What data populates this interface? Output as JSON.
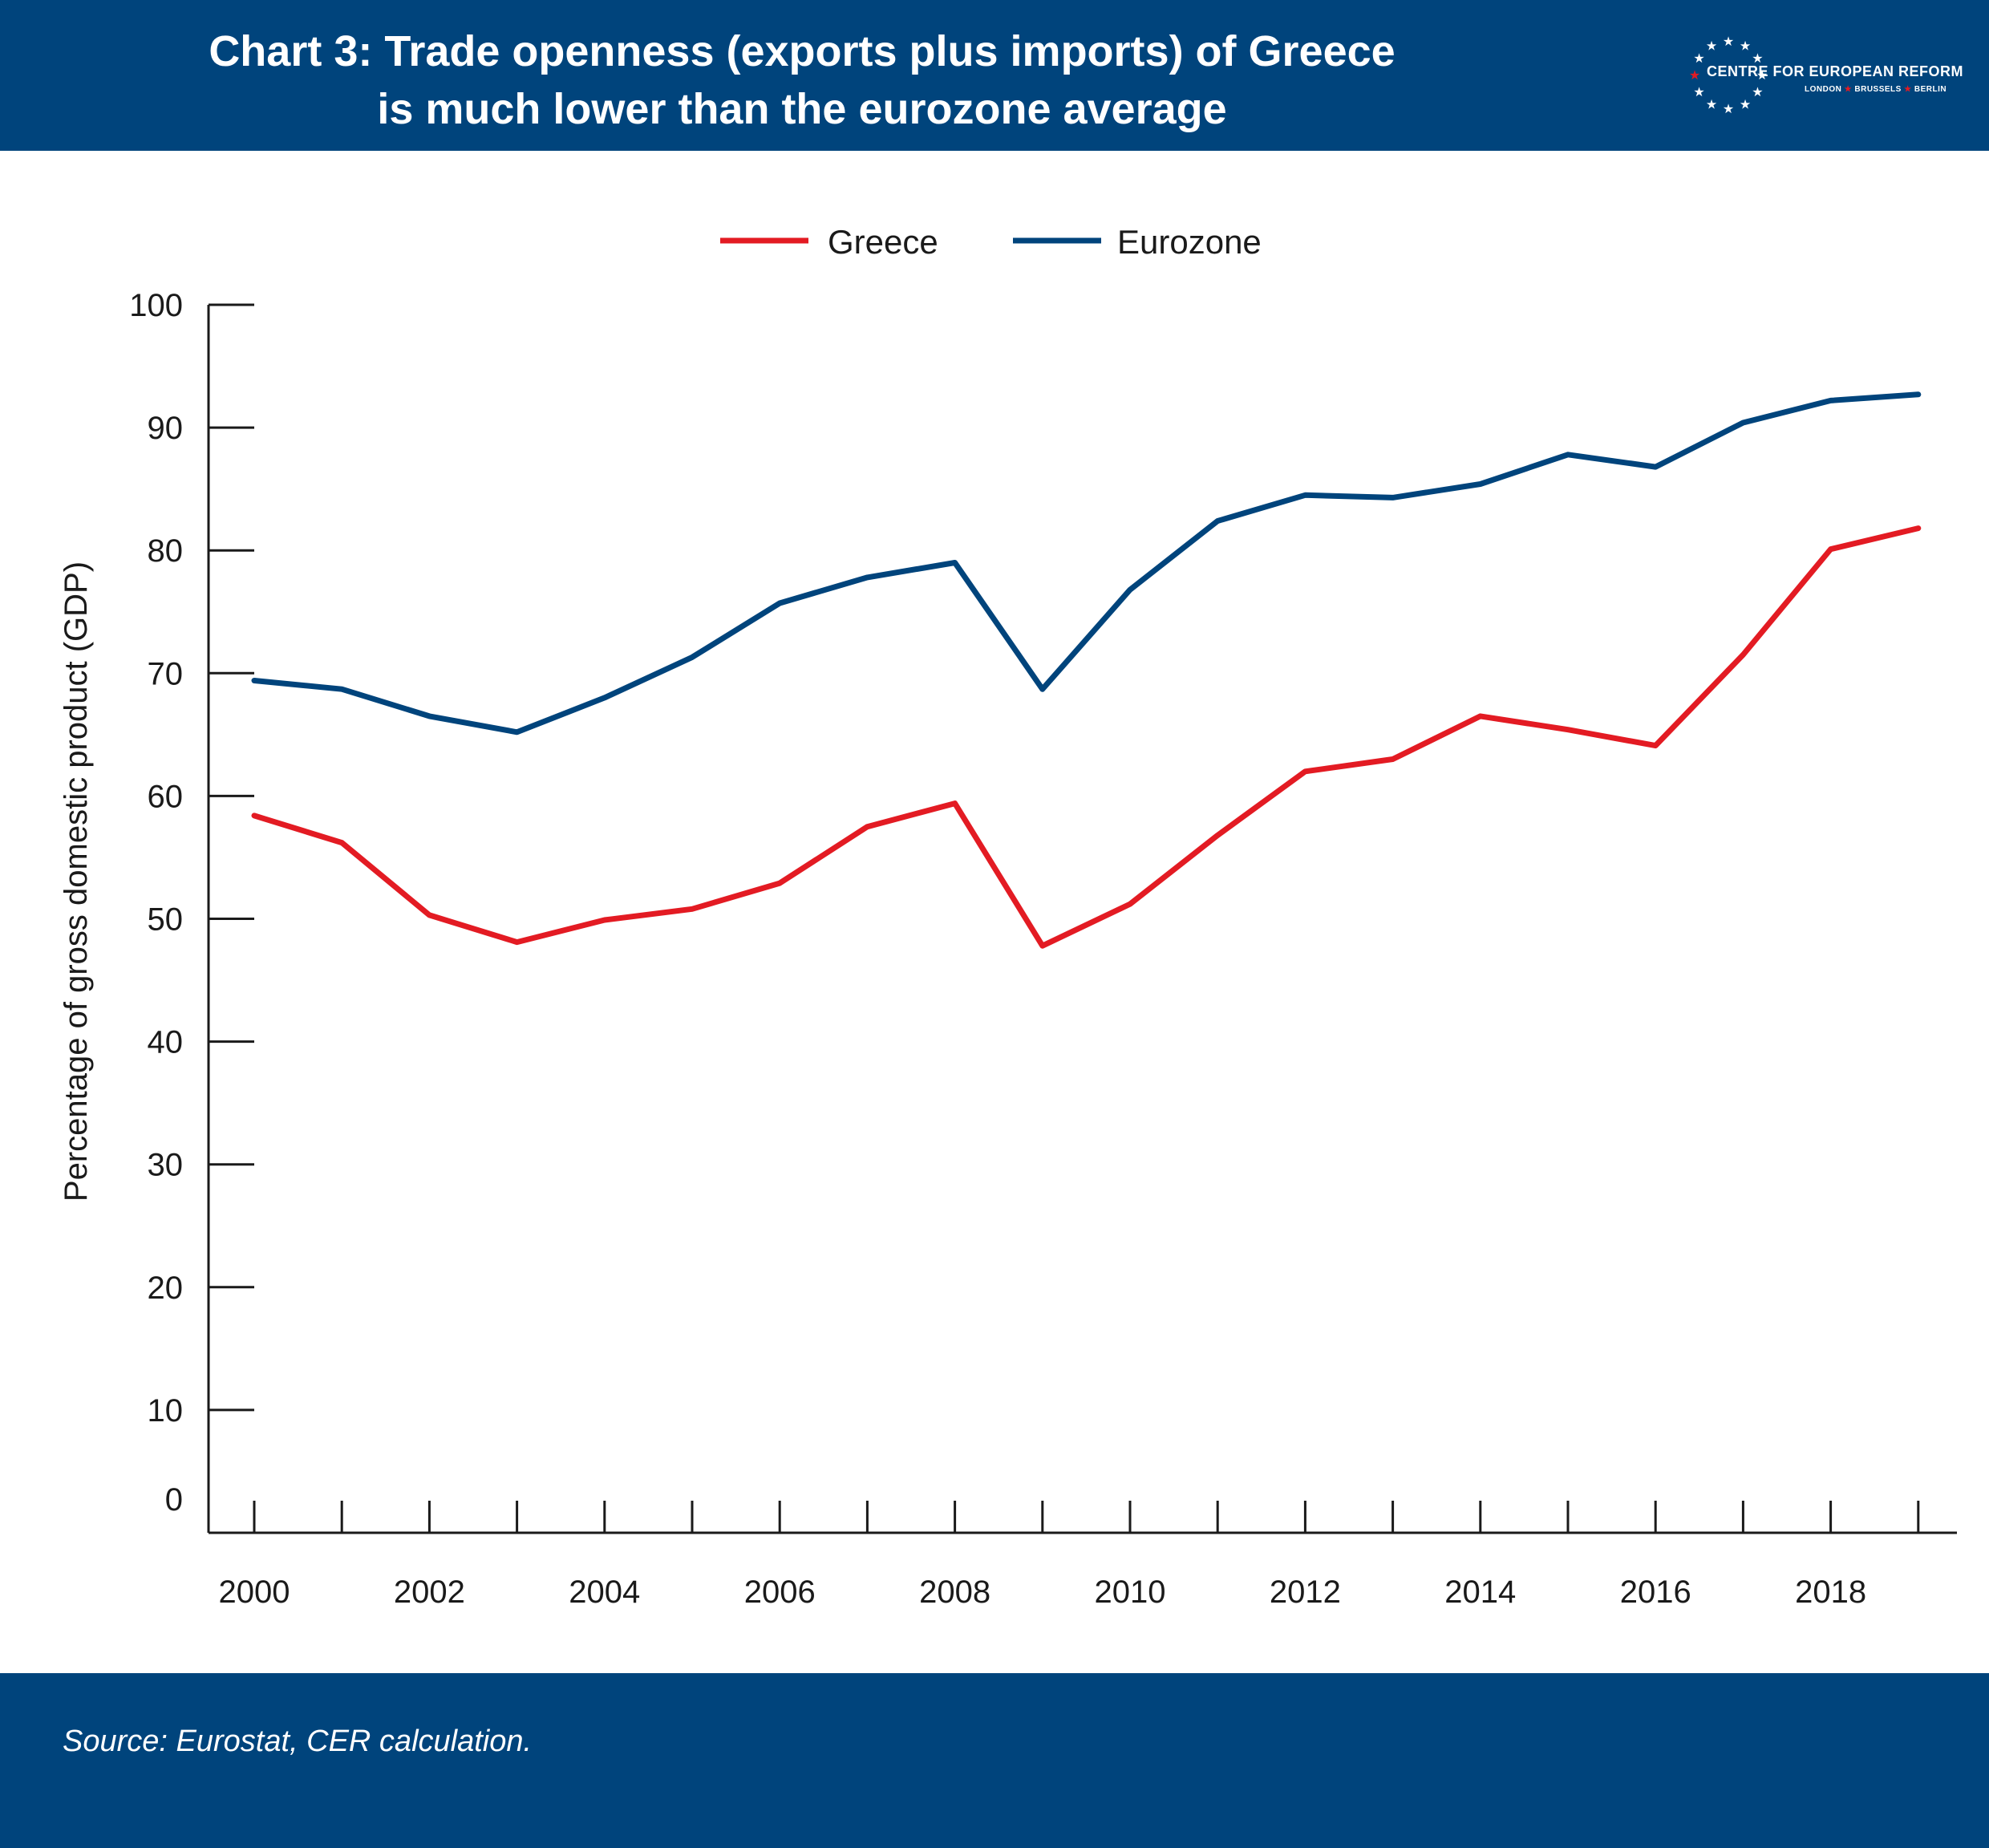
{
  "header": {
    "title_line1": "Chart 3: Trade openness (exports plus imports) of Greece",
    "title_line2": "is much lower than the eurozone average",
    "logo_name": "CENTRE FOR EUROPEAN REFORM",
    "logo_cities": [
      "LONDON",
      "BRUSSELS",
      "BERLIN"
    ]
  },
  "footer": {
    "source": "Source: Eurostat, CER calculation."
  },
  "colors": {
    "brand_blue": "#00447c",
    "greece": "#e31b23",
    "eurozone": "#00447c",
    "logo_star_red": "#e31b23"
  },
  "chart_data": {
    "type": "line",
    "title": "Chart 3: Trade openness (exports plus imports) of Greece is much lower than the eurozone average",
    "xlabel": "",
    "ylabel": "Percentage of gross domestic product (GDP)",
    "x": [
      2000,
      2001,
      2002,
      2003,
      2004,
      2005,
      2006,
      2007,
      2008,
      2009,
      2010,
      2011,
      2012,
      2013,
      2014,
      2015,
      2016,
      2017,
      2018,
      2019
    ],
    "x_tick_labels": [
      "2000",
      "2002",
      "2004",
      "2006",
      "2008",
      "2010",
      "2012",
      "2014",
      "2016",
      "2018"
    ],
    "y_tick_labels": [
      "0",
      "10",
      "20",
      "30",
      "40",
      "50",
      "60",
      "70",
      "80",
      "90",
      "100"
    ],
    "ylim": [
      0,
      100
    ],
    "xlim": [
      2000,
      2019
    ],
    "grid": false,
    "legend": "top-center",
    "series": [
      {
        "name": "Greece",
        "color": "#e31b23",
        "values": [
          58.4,
          56.2,
          50.3,
          48.1,
          49.9,
          50.8,
          52.9,
          57.5,
          59.4,
          47.8,
          51.2,
          56.8,
          62.0,
          63.0,
          66.5,
          65.4,
          64.1,
          71.5,
          80.1,
          81.8
        ]
      },
      {
        "name": "Eurozone",
        "color": "#00447c",
        "values": [
          69.4,
          68.7,
          66.5,
          65.2,
          68.0,
          71.3,
          75.7,
          77.8,
          79.0,
          68.7,
          76.8,
          82.4,
          84.5,
          84.3,
          85.4,
          87.8,
          86.8,
          90.4,
          92.2,
          92.7
        ]
      }
    ]
  }
}
